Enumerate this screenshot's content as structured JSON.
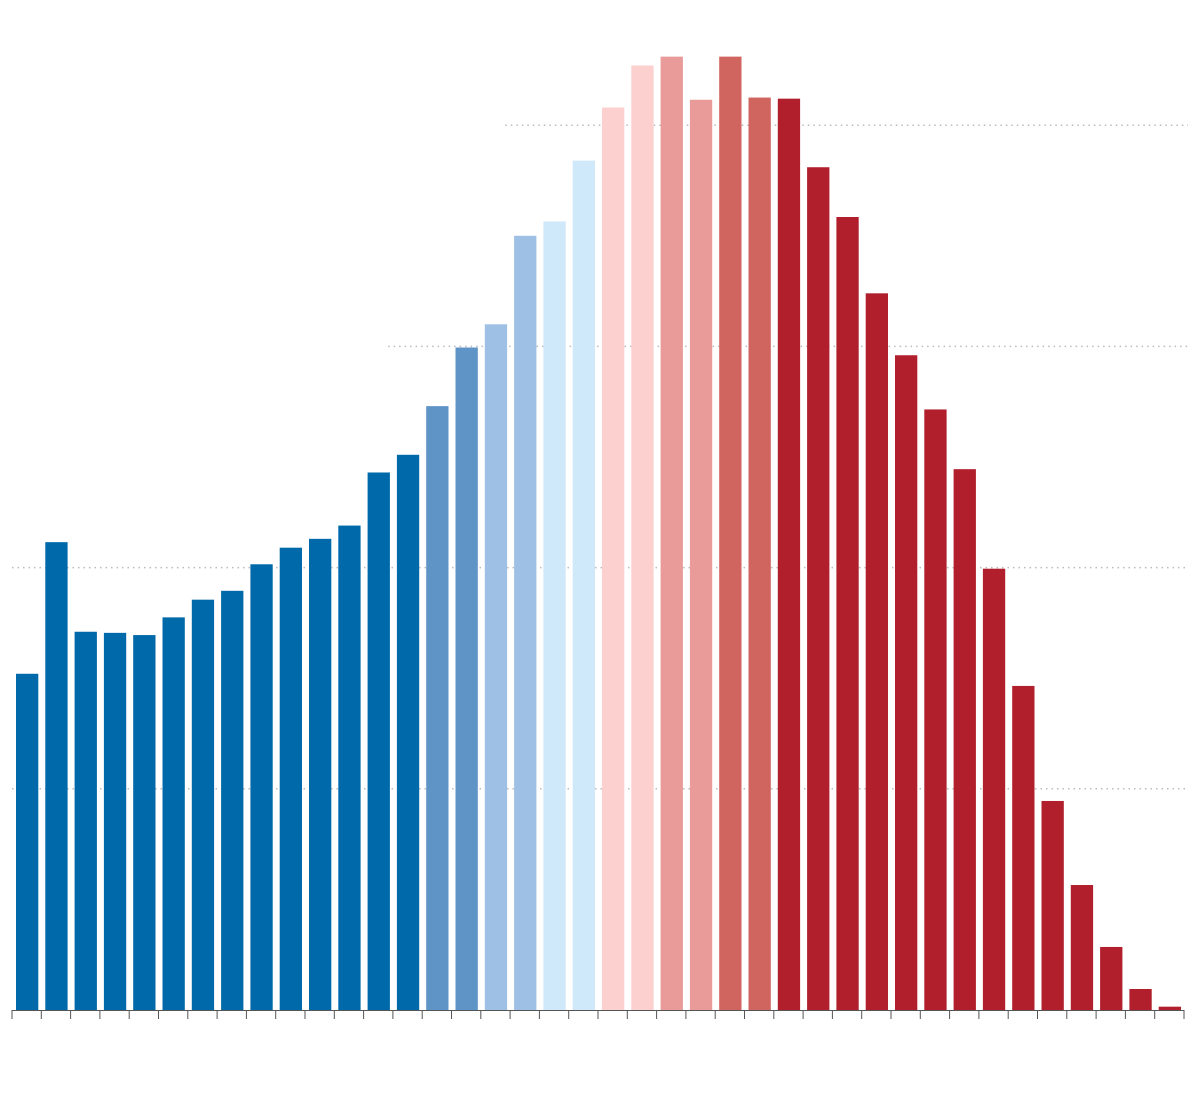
{
  "chart_data": {
    "type": "bar",
    "title": "",
    "xlabel": "",
    "ylabel": "",
    "ylim": [
      0,
      100
    ],
    "gridlines": [
      20,
      40,
      60,
      80
    ],
    "grid": true,
    "legend": "none",
    "values": [
      30.4,
      42.3,
      34.2,
      34.1,
      33.9,
      35.5,
      37.1,
      37.9,
      40.3,
      41.8,
      42.6,
      43.8,
      48.6,
      50.2,
      54.6,
      59.9,
      62.0,
      70.0,
      71.3,
      76.8,
      81.6,
      85.4,
      86.2,
      82.3,
      86.2,
      82.5,
      82.4,
      76.2,
      71.7,
      64.8,
      59.2,
      54.3,
      48.9,
      39.9,
      29.3,
      18.9,
      11.3,
      5.7,
      1.9,
      0.3
    ],
    "colors": [
      "#0069aa",
      "#0069aa",
      "#0069aa",
      "#0069aa",
      "#0069aa",
      "#0069aa",
      "#0069aa",
      "#0069aa",
      "#0069aa",
      "#0069aa",
      "#0069aa",
      "#0069aa",
      "#0069aa",
      "#0069aa",
      "#5f94c7",
      "#5f94c7",
      "#9fc0e5",
      "#9fc0e5",
      "#cfe9fa",
      "#cfe9fa",
      "#fbd0cf",
      "#fbd0cf",
      "#e89b98",
      "#e89b98",
      "#d0645f",
      "#d0645f",
      "#b01f2b",
      "#b01f2b",
      "#b01f2b",
      "#b01f2b",
      "#b01f2b",
      "#b01f2b",
      "#b01f2b",
      "#b01f2b",
      "#b01f2b",
      "#b01f2b",
      "#b01f2b",
      "#b01f2b",
      "#b01f2b",
      "#b01f2b"
    ],
    "gridline_color": "#bbbbbb",
    "axis_color": "#555555"
  }
}
